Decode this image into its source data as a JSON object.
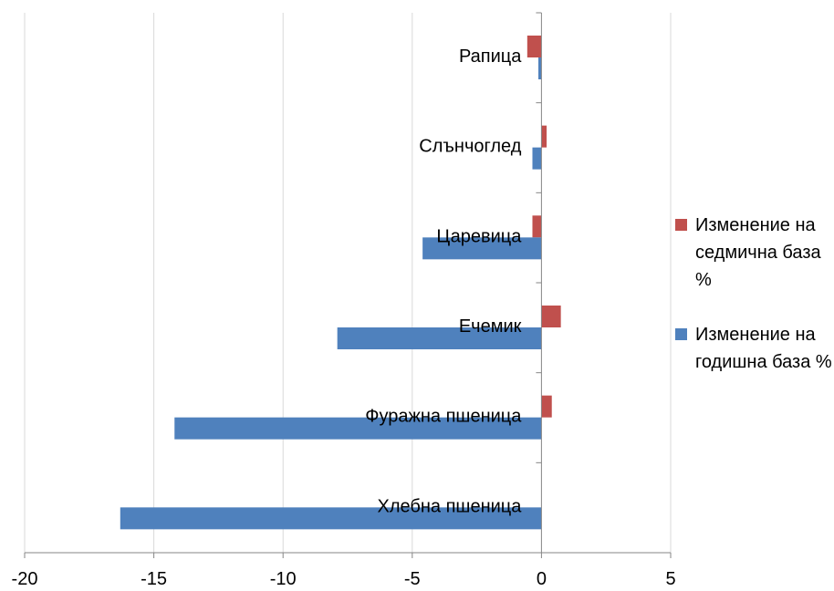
{
  "chart_data": {
    "type": "bar",
    "orientation": "horizontal",
    "categories": [
      "Хлебна пшеница",
      "Фуражна пшеница",
      "Ечемик",
      "Царевица",
      "Слънчоглед",
      "Рапица"
    ],
    "series": [
      {
        "name": "Изменение на годишна база %",
        "color": "#4f81bd",
        "values": [
          -16.3,
          -14.2,
          -7.9,
          -4.6,
          -0.35,
          -0.12
        ]
      },
      {
        "name": "Изменение на седмична база %",
        "color": "#c0504d",
        "values": [
          0.0,
          0.4,
          0.75,
          -0.35,
          0.2,
          -0.55
        ]
      }
    ],
    "xlim": [
      -20,
      5
    ],
    "xticks": [
      "-20",
      "-15",
      "-10",
      "-5",
      "0",
      "5"
    ],
    "grid": "vertical",
    "legend": "right"
  },
  "legend": {
    "items": [
      {
        "label": "Изменение на седмична база %",
        "color": "#c0504d"
      },
      {
        "label": "Изменение на годишна база %",
        "color": "#4f81bd"
      }
    ]
  }
}
